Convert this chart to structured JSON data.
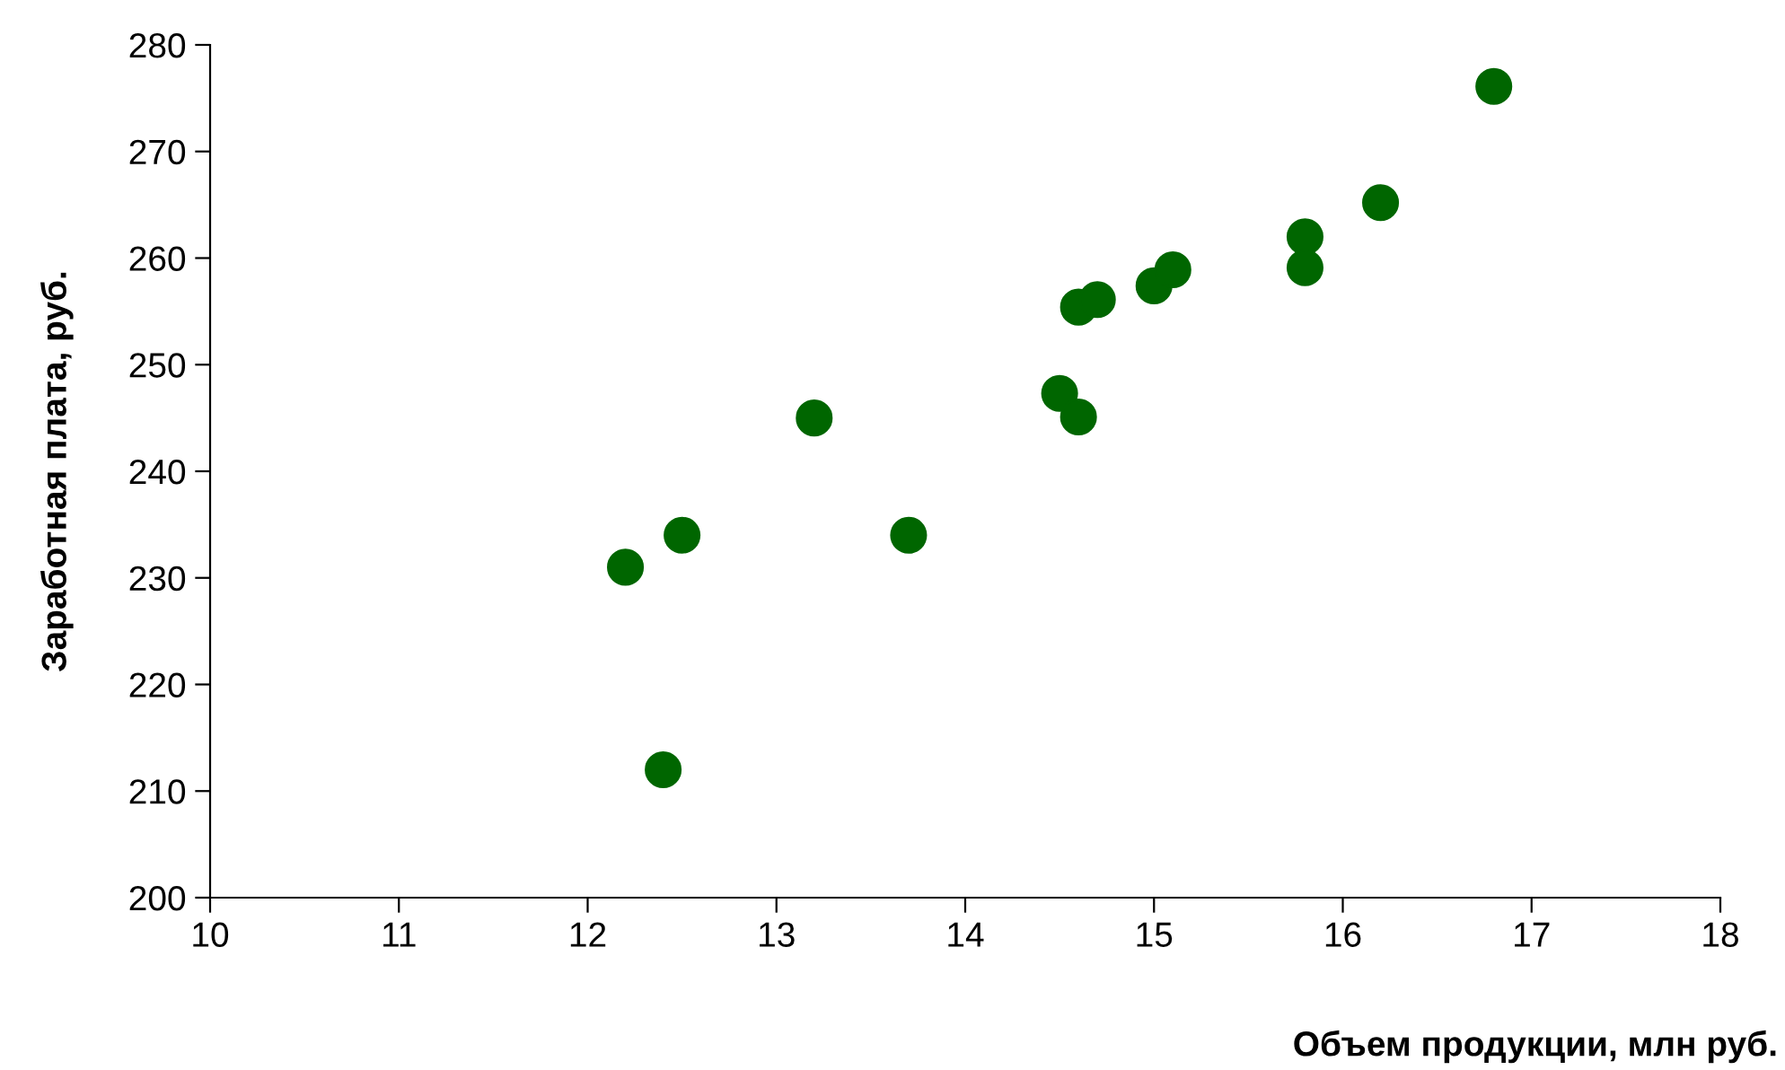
{
  "chart_data": {
    "type": "scatter",
    "xlabel": "Объем продукции, млн руб.",
    "ylabel": "Заработная плата, руб.",
    "x": [
      12.2,
      12.4,
      12.5,
      13.2,
      13.7,
      14.5,
      14.6,
      14.6,
      14.7,
      15.0,
      15.1,
      15.8,
      15.8,
      16.2,
      16.8
    ],
    "series": [
      {
        "color": "#006600",
        "values": [
          231,
          212,
          234,
          245,
          234,
          247.3,
          245.1,
          255.4,
          256.1,
          257.4,
          258.9,
          262,
          259.1,
          265.2,
          276.1
        ]
      }
    ],
    "xlim": [
      10,
      18
    ],
    "xticks": [
      10,
      11,
      12,
      13,
      14,
      15,
      16,
      17,
      18
    ],
    "ylim": [
      200,
      280
    ],
    "yticks": [
      200,
      210,
      220,
      230,
      240,
      250,
      260,
      270,
      280
    ],
    "marker": "circle",
    "grid": false,
    "legend": false
  }
}
